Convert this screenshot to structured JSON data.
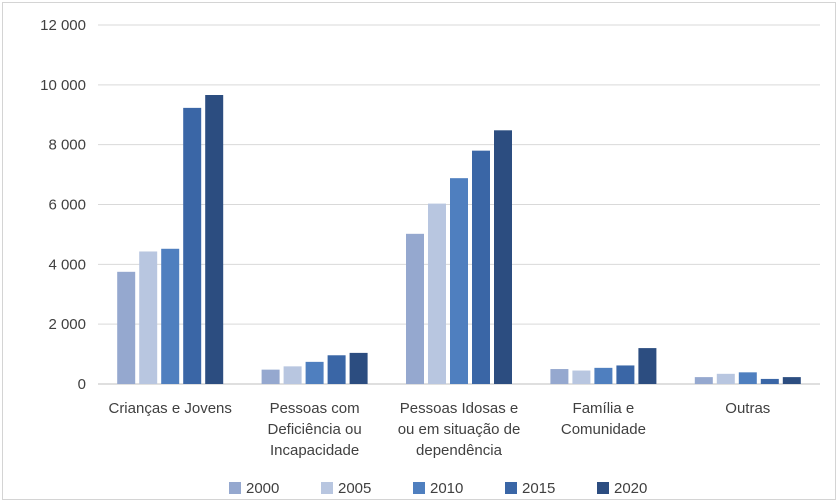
{
  "chart_data": {
    "type": "bar",
    "categories": [
      [
        "Crianças e Jovens"
      ],
      [
        "Pessoas com",
        "Deficiência ou",
        "Incapacidade"
      ],
      [
        "Pessoas Idosas e",
        "ou em situação de",
        "dependência"
      ],
      [
        "Família e",
        "Comunidade"
      ],
      [
        "Outras"
      ]
    ],
    "series": [
      {
        "name": "2000",
        "color": "#95a8cf",
        "values": [
          3750,
          480,
          5020,
          500,
          230
        ]
      },
      {
        "name": "2005",
        "color": "#b8c6e0",
        "values": [
          4430,
          590,
          6030,
          450,
          340
        ]
      },
      {
        "name": "2010",
        "color": "#4f7fbf",
        "values": [
          4520,
          740,
          6880,
          540,
          390
        ]
      },
      {
        "name": "2015",
        "color": "#3a66a6",
        "values": [
          9230,
          960,
          7800,
          620,
          170
        ]
      },
      {
        "name": "2020",
        "color": "#2c4d80",
        "values": [
          9660,
          1040,
          8480,
          1200,
          230
        ]
      }
    ],
    "yticks": [
      "0",
      "2 000",
      "4 000",
      "6 000",
      "8 000",
      "10 000",
      "12 000"
    ],
    "ylim": [
      0,
      12000
    ],
    "grid": true,
    "legend": "bottom",
    "title": "",
    "xlabel": "",
    "ylabel": ""
  }
}
